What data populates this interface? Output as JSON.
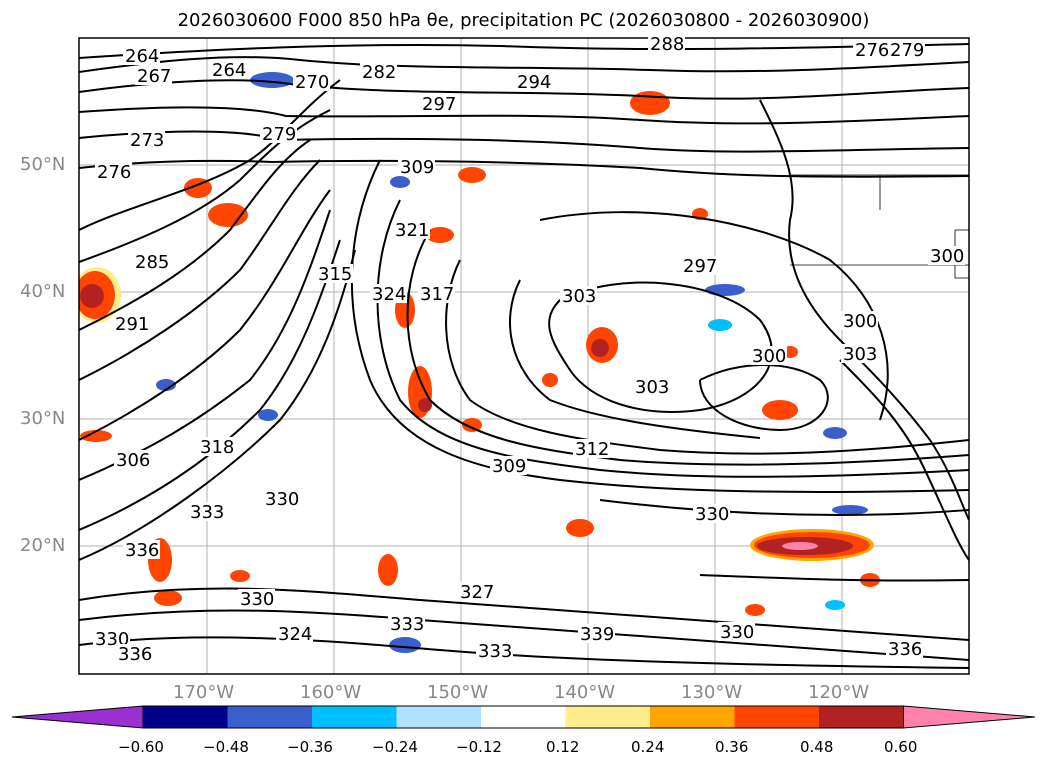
{
  "title": "2026030600 F000 850 hPa θe, precipitation PC (2026030800 - 2026030900)",
  "lat_labels": [
    "50°N",
    "40°N",
    "30°N",
    "20°N"
  ],
  "lon_labels": [
    "170°W",
    "160°W",
    "150°W",
    "140°W",
    "130°W",
    "120°W"
  ],
  "colorbar": {
    "ticks": [
      "−0.60",
      "−0.48",
      "−0.36",
      "−0.24",
      "−0.12",
      "0.12",
      "0.24",
      "0.36",
      "0.48",
      "0.60"
    ],
    "colors": [
      "#9b30d0",
      "#00008b",
      "#3a5fcd",
      "#00bfff",
      "#b0e2ff",
      "#ffffff",
      "#ffec8b",
      "#ffa500",
      "#ff4500",
      "#b22222",
      "#ff82ab"
    ]
  },
  "contour_labels": [
    "264",
    "267",
    "264",
    "270",
    "279",
    "282",
    "288",
    "276",
    "279",
    "294",
    "297",
    "273",
    "276",
    "309",
    "321",
    "315",
    "324",
    "317",
    "285",
    "291",
    "297",
    "303",
    "303",
    "300",
    "300",
    "303",
    "300",
    "306",
    "318",
    "330",
    "309",
    "312",
    "330",
    "333",
    "336",
    "327",
    "333",
    "330",
    "336",
    "333",
    "339",
    "330",
    "324",
    "330",
    "336"
  ]
}
